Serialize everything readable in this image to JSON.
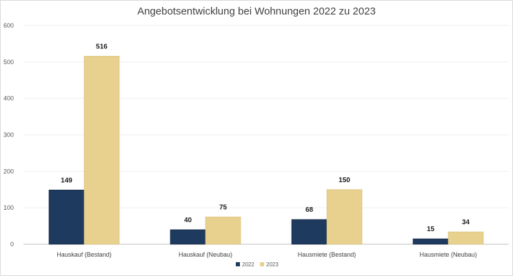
{
  "chart_data": {
    "type": "bar",
    "title": "Angebotsentwicklung bei Wohnungen 2022 zu 2023",
    "categories": [
      "Hauskauf (Bestand)",
      "Hauskauf (Neubau)",
      "Hausmiete (Bestand)",
      "Hausmiete (Neubau)"
    ],
    "series": [
      {
        "name": "2022",
        "values": [
          149,
          40,
          68,
          15
        ],
        "color": "#1f3a5f"
      },
      {
        "name": "2023",
        "values": [
          516,
          75,
          150,
          34
        ],
        "color": "#e8d18f"
      }
    ],
    "ylim": [
      0,
      600
    ],
    "yticks": [
      0,
      100,
      200,
      300,
      400,
      500,
      600
    ],
    "grid": true,
    "legend": "bottom",
    "xlabel": "",
    "ylabel": ""
  }
}
